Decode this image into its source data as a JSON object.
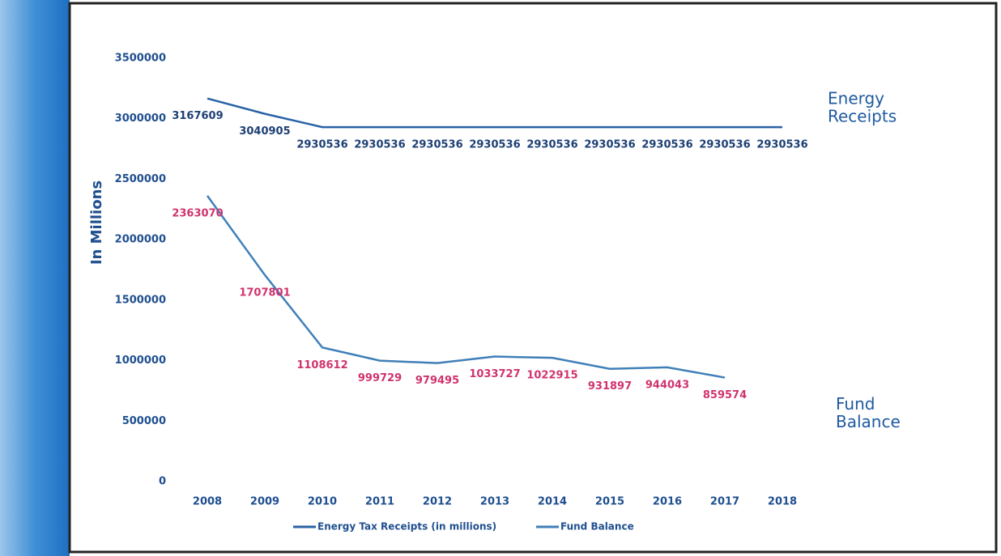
{
  "chart_data": {
    "type": "line",
    "y_label": "In Millions",
    "categories": [
      "2008",
      "2009",
      "2010",
      "2011",
      "2012",
      "2013",
      "2014",
      "2015",
      "2016",
      "2017",
      "2018"
    ],
    "series": [
      {
        "name": "Energy Tax Receipts (in millions)",
        "color": "#2a62a6",
        "label_color": "#1d3f74",
        "values": [
          3167609,
          3040905,
          2930536,
          2930536,
          2930536,
          2930536,
          2930536,
          2930536,
          2930536,
          2930536,
          2930536
        ]
      },
      {
        "name": "Fund Balance",
        "color": "#3f7fb8",
        "label_color": "#d0336e",
        "values": [
          2363070,
          1707801,
          1108612,
          999729,
          979495,
          1033727,
          1022915,
          931897,
          944043,
          859574,
          null
        ]
      }
    ],
    "annotations": [
      {
        "lines": [
          "Energy",
          "Receipts"
        ],
        "series": 0
      },
      {
        "lines": [
          "Fund",
          "Balance"
        ],
        "series": 1
      }
    ],
    "ylim": [
      0,
      3500000
    ],
    "yticks": [
      0,
      500000,
      1000000,
      1500000,
      2000000,
      2500000,
      3000000,
      3500000
    ],
    "grid": false
  }
}
